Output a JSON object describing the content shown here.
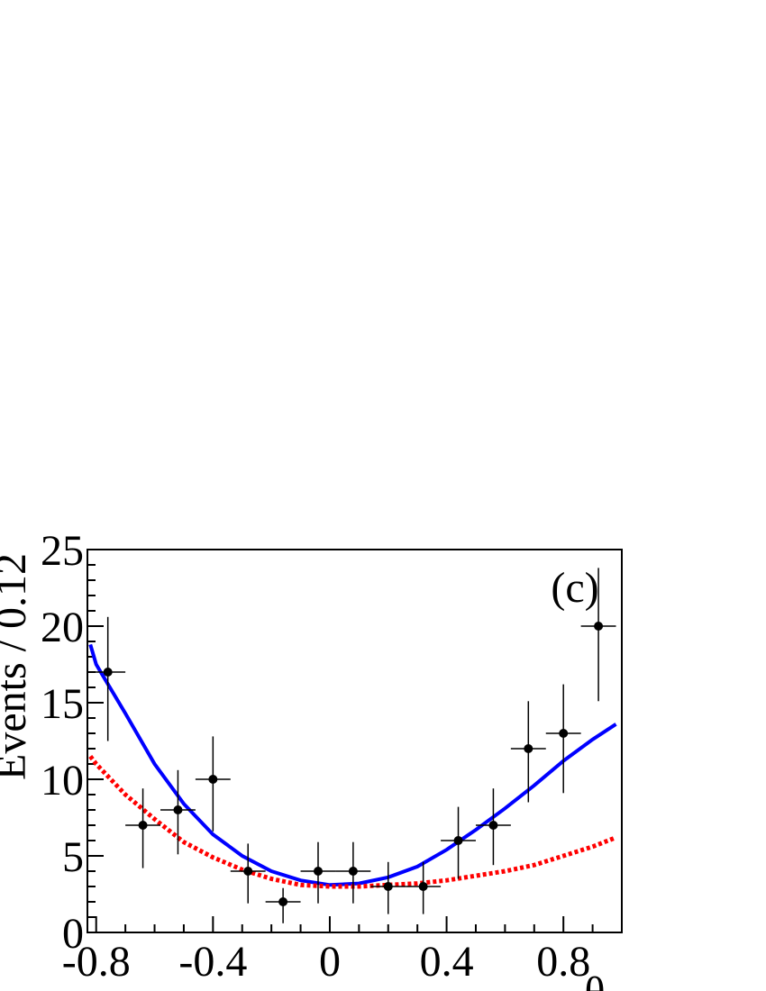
{
  "chart_data": {
    "type": "errorbar",
    "y_label": "Events / 0.12",
    "x_label": "θ",
    "annotation": "(c)",
    "xlim": [
      -0.83,
      1.0
    ],
    "ylim": [
      0,
      25
    ],
    "xticks": [
      -0.8,
      -0.4,
      0,
      0.4,
      0.8
    ],
    "yticks": [
      0,
      5,
      10,
      15,
      20,
      25
    ],
    "xticks_minor": [
      -0.7,
      -0.6,
      -0.5,
      -0.3,
      -0.2,
      -0.1,
      0.1,
      0.2,
      0.3,
      0.5,
      0.6,
      0.7,
      0.9
    ],
    "yticks_minor": [
      1,
      2,
      3,
      4,
      6,
      7,
      8,
      9,
      11,
      12,
      13,
      14,
      16,
      17,
      18,
      19,
      21,
      22,
      23,
      24
    ],
    "bin_width": 0.12,
    "x": [
      -0.76,
      -0.64,
      -0.52,
      -0.4,
      -0.28,
      -0.16,
      -0.04,
      0.08,
      0.2,
      0.32,
      0.44,
      0.56,
      0.68,
      0.8,
      0.92
    ],
    "values": [
      17,
      7,
      8,
      10,
      4,
      2,
      4,
      4,
      3,
      3,
      6,
      7,
      12,
      13,
      20
    ],
    "err_high": [
      3.6,
      2.4,
      2.6,
      2.8,
      1.8,
      0.9,
      1.9,
      1.9,
      1.6,
      1.6,
      2.2,
      2.4,
      3.1,
      3.2,
      3.8
    ],
    "err_low": [
      4.5,
      2.8,
      2.9,
      3.4,
      2.1,
      1.4,
      2.1,
      2.1,
      1.8,
      1.8,
      2.5,
      2.6,
      3.5,
      3.9,
      4.9
    ],
    "marker_color": "#000000",
    "curves": [
      {
        "color": "#0000ff",
        "style": "solid",
        "x": [
          -0.82,
          -0.8,
          -0.7,
          -0.6,
          -0.5,
          -0.4,
          -0.3,
          -0.2,
          -0.1,
          0,
          0.1,
          0.2,
          0.3,
          0.4,
          0.5,
          0.6,
          0.7,
          0.8,
          0.9,
          0.98
        ],
        "values": [
          18.8,
          17.5,
          14.3,
          11.0,
          8.4,
          6.4,
          5.0,
          4.0,
          3.4,
          3.1,
          3.2,
          3.6,
          4.3,
          5.4,
          6.7,
          8.1,
          9.6,
          11.2,
          12.6,
          13.6
        ]
      },
      {
        "color": "#ff0000",
        "style": "dotted",
        "x": [
          -0.82,
          -0.8,
          -0.7,
          -0.6,
          -0.5,
          -0.4,
          -0.3,
          -0.2,
          -0.1,
          0,
          0.1,
          0.2,
          0.3,
          0.4,
          0.5,
          0.6,
          0.7,
          0.8,
          0.9,
          0.98
        ],
        "values": [
          11.5,
          11.0,
          9.0,
          7.4,
          5.9,
          4.9,
          4.1,
          3.5,
          3.1,
          3.0,
          3.0,
          3.1,
          3.2,
          3.4,
          3.7,
          4.0,
          4.4,
          5.0,
          5.6,
          6.2
        ]
      }
    ]
  }
}
